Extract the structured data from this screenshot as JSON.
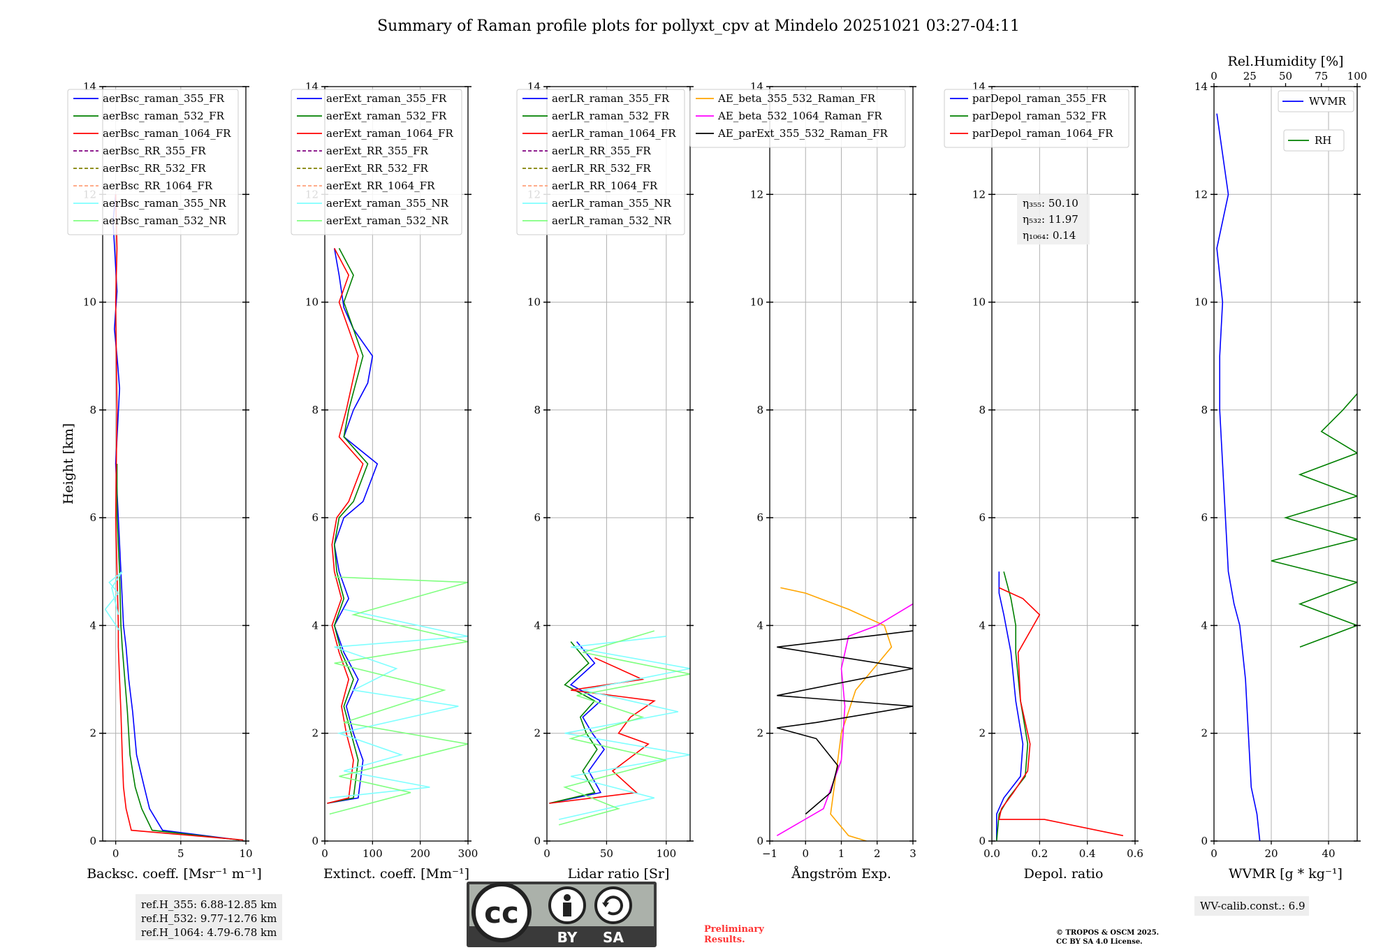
{
  "title": "Summary of Raman profile plots for pollyxt_cpv at Mindelo 20251021 03:27-04:11",
  "colors": {
    "b355": "#0000ff",
    "g532": "#008000",
    "r1064": "#ff0000",
    "rr355": "#800080",
    "rr532": "#808000",
    "rr1064": "#ffa07a",
    "nr355": "#7fffff",
    "nr532": "#80ff80",
    "ae1": "#ffa500",
    "ae2": "#ff00ff",
    "ae3": "#000000",
    "prelim": "#ff3333"
  },
  "chart_data": [
    {
      "type": "line",
      "id": "bsc",
      "xlabel": "Backsc. coeff. [Msr⁻¹ m⁻¹]",
      "ylabel": "Height [km]",
      "xlim": [
        -1,
        10
      ],
      "ylim": [
        0,
        14
      ],
      "xticks": [
        0,
        5,
        10
      ],
      "yticks": [
        0,
        2,
        4,
        6,
        8,
        10,
        12,
        14
      ],
      "legend": [
        "aerBsc_raman_355_FR",
        "aerBsc_raman_532_FR",
        "aerBsc_raman_1064_FR",
        "aerBsc_RR_355_FR",
        "aerBsc_RR_532_FR",
        "aerBsc_RR_1064_FR",
        "aerBsc_raman_355_NR",
        "aerBsc_raman_532_NR"
      ],
      "series": [
        {
          "name": "aerBsc_raman_355_FR",
          "x": [
            9.5,
            3.6,
            2.6,
            2.2,
            1.6,
            1.3,
            1.0,
            0.8,
            0.6,
            0.4,
            0.2,
            0.0,
            0.3,
            0.1,
            -0.1,
            0.1,
            -0.2,
            0.0
          ],
          "y": [
            0.02,
            0.2,
            0.6,
            1.0,
            1.6,
            2.4,
            3.0,
            3.6,
            4.0,
            5.0,
            6.0,
            7.0,
            8.4,
            9.0,
            9.5,
            10.2,
            11.5,
            12.0
          ]
        },
        {
          "name": "aerBsc_raman_532_FR",
          "x": [
            9.5,
            2.8,
            2.0,
            1.5,
            1.1,
            0.9,
            0.7,
            0.5,
            0.4,
            0.3,
            0.1,
            0.1
          ],
          "y": [
            0.02,
            0.2,
            0.6,
            1.0,
            1.6,
            2.4,
            3.0,
            3.6,
            4.0,
            5.0,
            6.0,
            7.0
          ]
        },
        {
          "name": "aerBsc_raman_1064_FR",
          "x": [
            9.8,
            1.2,
            0.8,
            0.6,
            0.5,
            0.4,
            0.3,
            0.2,
            0.2,
            0.1,
            0.0,
            0.1,
            0.0,
            0.1,
            0.0
          ],
          "y": [
            0.02,
            0.2,
            0.6,
            1.0,
            1.6,
            2.4,
            3.0,
            3.6,
            4.0,
            5.0,
            6.0,
            8.0,
            10.0,
            11.0,
            12.0
          ]
        },
        {
          "name": "aerBsc_raman_355_NR",
          "x": [
            0.3,
            -0.8,
            0.2,
            -0.5,
            0.5,
            -0.3,
            0.2
          ],
          "y": [
            3.9,
            4.3,
            4.6,
            4.8,
            5.0,
            4.7,
            4.2
          ]
        }
      ]
    },
    {
      "type": "line",
      "id": "ext",
      "xlabel": "Extinct. coeff. [Mm⁻¹]",
      "xlim": [
        0,
        300
      ],
      "ylim": [
        0,
        14
      ],
      "xticks": [
        0,
        100,
        200,
        300
      ],
      "yticks": [
        0,
        2,
        4,
        6,
        8,
        10,
        12,
        14
      ],
      "legend": [
        "aerExt_raman_355_FR",
        "aerExt_raman_532_FR",
        "aerExt_raman_1064_FR",
        "aerExt_RR_355_FR",
        "aerExt_RR_532_FR",
        "aerExt_RR_1064_FR",
        "aerExt_raman_355_NR",
        "aerExt_raman_532_NR"
      ],
      "series": [
        {
          "name": "aerExt_raman_355_FR",
          "x": [
            5,
            70,
            80,
            60,
            45,
            70,
            40,
            20,
            50,
            30,
            20,
            40,
            80,
            110,
            40,
            60,
            90,
            100,
            60,
            40,
            30,
            20
          ],
          "y": [
            0.7,
            0.8,
            1.5,
            2.0,
            2.5,
            3.0,
            3.5,
            4.0,
            4.5,
            5.0,
            5.5,
            6.0,
            6.3,
            7.0,
            7.5,
            8.0,
            8.5,
            9.0,
            9.5,
            9.9,
            10.5,
            11.0
          ]
        },
        {
          "name": "aerExt_raman_532_FR",
          "x": [
            5,
            60,
            70,
            55,
            40,
            60,
            35,
            20,
            40,
            25,
            20,
            30,
            60,
            90,
            40,
            50,
            80,
            60,
            40,
            60,
            30
          ],
          "y": [
            0.7,
            0.8,
            1.5,
            2.0,
            2.5,
            3.0,
            3.5,
            4.0,
            4.5,
            5.0,
            5.5,
            6.0,
            6.3,
            7.0,
            7.5,
            8.0,
            9.0,
            9.5,
            10.0,
            10.5,
            11.0
          ]
        },
        {
          "name": "aerExt_raman_1064_FR",
          "x": [
            5,
            50,
            60,
            45,
            35,
            50,
            30,
            15,
            35,
            20,
            15,
            25,
            50,
            80,
            30,
            45,
            70,
            50,
            30,
            50,
            20
          ],
          "y": [
            0.7,
            0.8,
            1.5,
            2.0,
            2.5,
            3.0,
            3.5,
            4.0,
            4.5,
            5.0,
            5.5,
            6.0,
            6.3,
            7.0,
            7.5,
            8.0,
            9.0,
            9.5,
            10.0,
            10.5,
            11.0
          ]
        },
        {
          "name": "aerExt_raman_355_NR",
          "x": [
            10,
            220,
            40,
            160,
            30,
            280,
            60,
            150,
            20,
            300,
            40
          ],
          "y": [
            0.8,
            1.0,
            1.3,
            1.6,
            2.0,
            2.5,
            2.8,
            3.2,
            3.6,
            3.8,
            4.3
          ]
        },
        {
          "name": "aerExt_raman_532_NR",
          "x": [
            10,
            180,
            30,
            300,
            40,
            250,
            20,
            300,
            60,
            300,
            20
          ],
          "y": [
            0.5,
            0.9,
            1.2,
            1.8,
            2.2,
            2.8,
            3.3,
            3.7,
            4.2,
            4.8,
            4.9
          ]
        }
      ]
    },
    {
      "type": "line",
      "id": "lr",
      "xlabel": "Lidar ratio [Sr]",
      "xlim": [
        0,
        120
      ],
      "ylim": [
        0,
        14
      ],
      "xticks": [
        0,
        50,
        100
      ],
      "yticks": [
        0,
        2,
        4,
        6,
        8,
        10,
        12,
        14
      ],
      "legend": [
        "aerLR_raman_355_FR",
        "aerLR_raman_532_FR",
        "aerLR_raman_1064_FR",
        "aerLR_RR_355_FR",
        "aerLR_RR_532_FR",
        "aerLR_RR_1064_FR",
        "aerLR_raman_355_NR",
        "aerLR_raman_532_NR"
      ],
      "series": [
        {
          "name": "aerLR_raman_355_FR",
          "x": [
            2,
            45,
            35,
            48,
            38,
            30,
            45,
            20,
            40,
            25
          ],
          "y": [
            0.7,
            0.9,
            1.3,
            1.7,
            2.0,
            2.3,
            2.6,
            2.9,
            3.3,
            3.7
          ]
        },
        {
          "name": "aerLR_raman_532_FR",
          "x": [
            2,
            40,
            30,
            42,
            33,
            28,
            40,
            15,
            35,
            20
          ],
          "y": [
            0.7,
            0.9,
            1.3,
            1.7,
            2.0,
            2.3,
            2.6,
            2.9,
            3.3,
            3.7
          ]
        },
        {
          "name": "aerLR_raman_1064_FR",
          "x": [
            2,
            75,
            55,
            85,
            60,
            70,
            90,
            20,
            80,
            40
          ],
          "y": [
            0.7,
            0.9,
            1.3,
            1.8,
            2.0,
            2.3,
            2.6,
            2.8,
            3.0,
            3.4
          ]
        },
        {
          "name": "aerLR_raman_355_NR",
          "x": [
            10,
            90,
            20,
            120,
            15,
            110,
            30,
            120,
            20,
            100
          ],
          "y": [
            0.4,
            0.8,
            1.2,
            1.6,
            2.0,
            2.4,
            2.8,
            3.2,
            3.6,
            3.8
          ]
        },
        {
          "name": "aerLR_raman_532_NR",
          "x": [
            10,
            60,
            15,
            100,
            20,
            80,
            25,
            120,
            30,
            90
          ],
          "y": [
            0.3,
            0.6,
            1.0,
            1.5,
            1.9,
            2.3,
            2.7,
            3.1,
            3.5,
            3.9
          ]
        }
      ]
    },
    {
      "type": "line",
      "id": "ae",
      "xlabel": "Ångström Exp.",
      "xlim": [
        -1,
        3
      ],
      "ylim": [
        0,
        14
      ],
      "xticks": [
        -1,
        0,
        1,
        2,
        3
      ],
      "yticks": [
        0,
        2,
        4,
        6,
        8,
        10,
        12,
        14
      ],
      "legend": [
        "AE_beta_355_532_Raman_FR",
        "AE_beta_532_1064_Raman_FR",
        "AE_parExt_355_532_Raman_FR"
      ],
      "series": [
        {
          "name": "AE_beta_355_532_Raman_FR",
          "x": [
            1.7,
            1.2,
            0.7,
            0.8,
            1.0,
            1.4,
            2.4,
            2.2,
            1.2,
            0.0,
            -0.7
          ],
          "y": [
            0.0,
            0.1,
            0.5,
            1.0,
            2.0,
            2.8,
            3.6,
            4.0,
            4.3,
            4.6,
            4.7
          ]
        },
        {
          "name": "AE_beta_532_1064_Raman_FR",
          "x": [
            -0.8,
            0.5,
            1.0,
            1.1,
            1.0,
            1.2,
            2.0,
            3.0
          ],
          "y": [
            0.1,
            0.6,
            1.5,
            2.5,
            3.2,
            3.8,
            4.0,
            4.4
          ]
        },
        {
          "name": "AE_parExt_355_532_Raman_FR",
          "x": [
            0.0,
            0.7,
            0.9,
            0.3,
            -0.8,
            0.3,
            3.0,
            -0.8,
            3.0,
            -0.8,
            3.0
          ],
          "y": [
            0.5,
            0.9,
            1.4,
            1.9,
            2.1,
            2.2,
            2.5,
            2.7,
            3.2,
            3.6,
            3.9
          ]
        }
      ]
    },
    {
      "type": "line",
      "id": "depol",
      "xlabel": "Depol. ratio",
      "xlim": [
        0,
        0.6
      ],
      "ylim": [
        0,
        14
      ],
      "xticks": [
        0.0,
        0.2,
        0.4,
        0.6
      ],
      "yticks": [
        0,
        2,
        4,
        6,
        8,
        10,
        12,
        14
      ],
      "legend": [
        "parDepol_raman_355_FR",
        "parDepol_raman_532_FR",
        "parDepol_raman_1064_FR"
      ],
      "series": [
        {
          "name": "parDepol_raman_355_FR",
          "x": [
            0.02,
            0.02,
            0.05,
            0.12,
            0.13,
            0.1,
            0.08,
            0.05,
            0.03,
            0.03
          ],
          "y": [
            0.0,
            0.5,
            0.8,
            1.2,
            1.8,
            2.6,
            3.5,
            4.2,
            4.6,
            5.0
          ]
        },
        {
          "name": "parDepol_raman_532_FR",
          "x": [
            0.02,
            0.03,
            0.07,
            0.14,
            0.15,
            0.12,
            0.1,
            0.1,
            0.08,
            0.05
          ],
          "y": [
            0.0,
            0.5,
            0.8,
            1.2,
            1.8,
            2.6,
            3.5,
            4.0,
            4.5,
            5.0
          ]
        },
        {
          "name": "parDepol_raman_1064_FR",
          "x": [
            0.55,
            0.22,
            0.03,
            0.04,
            0.09,
            0.15,
            0.16,
            0.12,
            0.11,
            0.2,
            0.13,
            0.03
          ],
          "y": [
            0.1,
            0.4,
            0.4,
            0.6,
            0.9,
            1.3,
            1.8,
            2.6,
            3.5,
            4.2,
            4.5,
            4.7
          ]
        }
      ],
      "annotation": [
        {
          "label": "η₃₅₅: 50.10"
        },
        {
          "label": "η₅₃₂: 11.97"
        },
        {
          "label": "η₁₀₆₄: 0.14"
        }
      ]
    },
    {
      "type": "line",
      "id": "wv",
      "xlabel": "WVMR [g * kg⁻¹]",
      "x2label": "Rel.Humidity [%]",
      "xlim": [
        0,
        50
      ],
      "ylim": [
        0,
        14
      ],
      "x2lim": [
        0,
        100
      ],
      "xticks": [
        0,
        20,
        40
      ],
      "x2ticks": [
        0,
        25,
        50,
        75,
        100
      ],
      "yticks": [
        0,
        2,
        4,
        6,
        8,
        10,
        12,
        14
      ],
      "legend": [
        "WVMR",
        "RH"
      ],
      "series": [
        {
          "name": "WVMR",
          "x": [
            16,
            15,
            13,
            12,
            11,
            10,
            9,
            7,
            5,
            4,
            3,
            2,
            2,
            3,
            1,
            5,
            1
          ],
          "y": [
            0.0,
            0.5,
            1.0,
            2.0,
            3.0,
            3.5,
            4.0,
            4.4,
            5.0,
            6.0,
            7.0,
            8.0,
            9.0,
            10.0,
            11.0,
            12.0,
            13.5
          ]
        },
        {
          "name": "RH",
          "x": [
            60,
            100,
            60,
            100,
            40,
            100,
            50,
            100,
            60,
            100,
            75,
            90,
            100
          ],
          "y": [
            3.6,
            4.0,
            4.4,
            4.8,
            5.2,
            5.6,
            6.0,
            6.4,
            6.8,
            7.2,
            7.6,
            8.0,
            8.3
          ]
        }
      ]
    }
  ],
  "notes": {
    "refH": [
      "ref.H_355: 6.88-12.85 km",
      "ref.H_532: 9.77-12.76 km",
      "ref.H_1064: 4.79-6.78 km"
    ],
    "wvcalib": "WV-calib.const.: 6.9",
    "prelim": [
      "Preliminary",
      "Results."
    ],
    "copyright": [
      "© TROPOS & OSCM 2025.",
      "CC BY SA 4.0 License."
    ],
    "cc": {
      "main": "cc",
      "by": "BY",
      "sa": "SA"
    }
  }
}
